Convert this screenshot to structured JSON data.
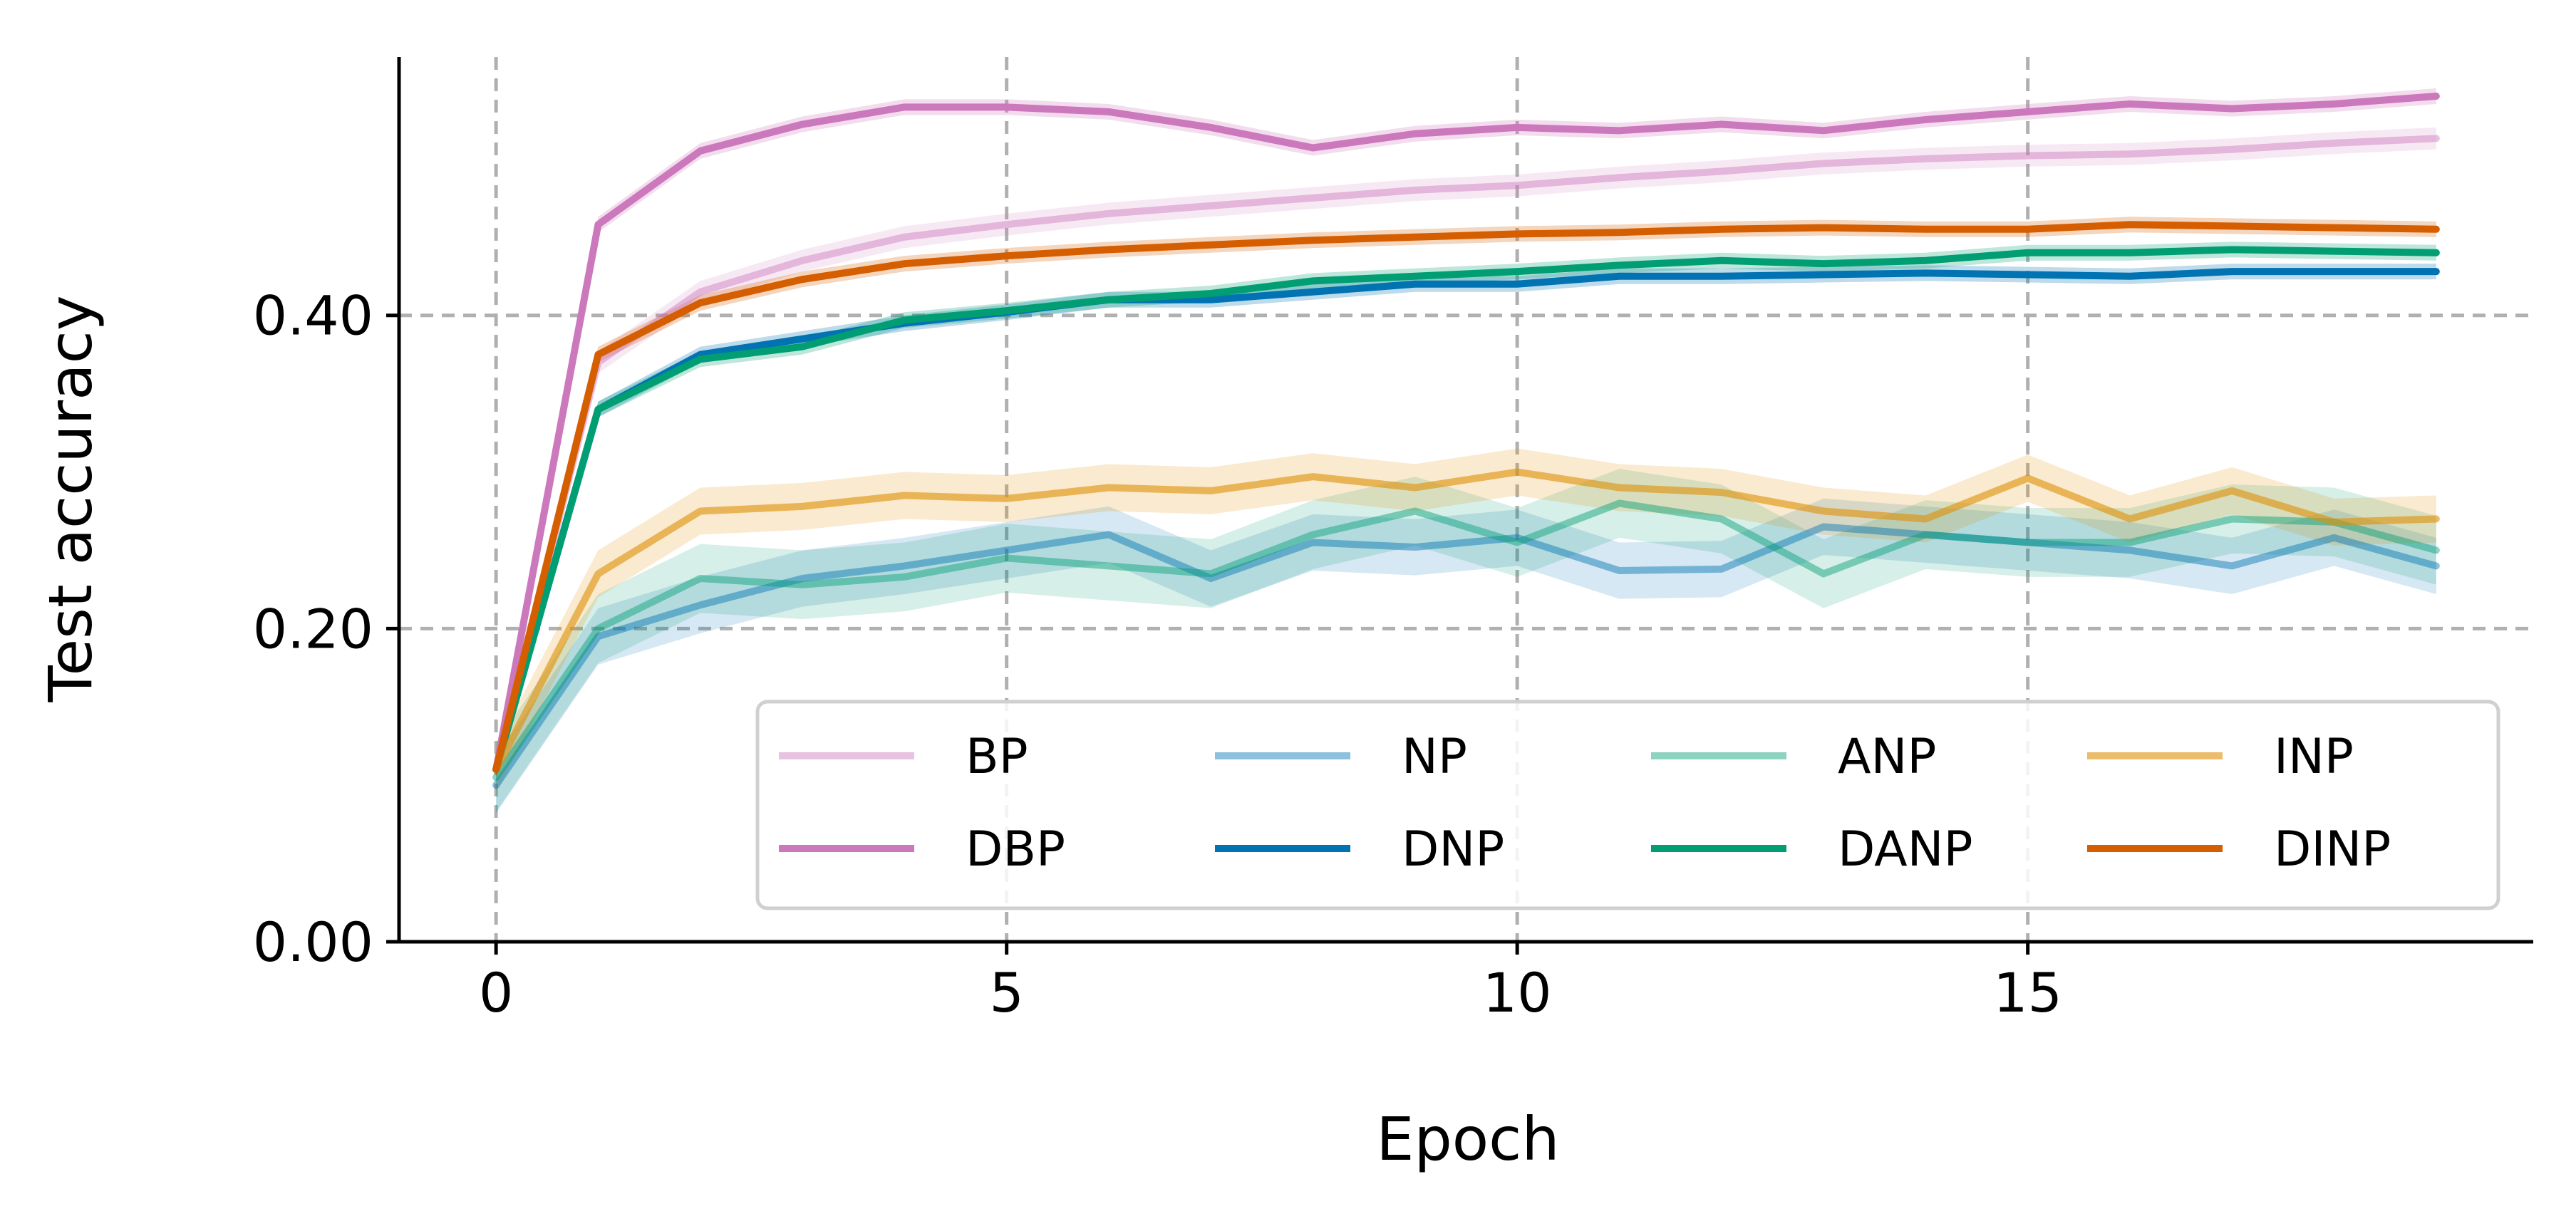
{
  "chart_data": {
    "type": "line",
    "xlabel": "Epoch",
    "ylabel": "Test accuracy",
    "xlim": [
      -0.95,
      19.95
    ],
    "ylim": [
      0,
      0.565
    ],
    "xticks": [
      0,
      5,
      10,
      15
    ],
    "xtick_labels": [
      "0",
      "5",
      "10",
      "15"
    ],
    "yticks": [
      0,
      0.2,
      0.4
    ],
    "ytick_labels": [
      "0.00",
      "0.20",
      "0.40"
    ],
    "grid": true,
    "legend_position": "lower-right",
    "legend_columns": 4,
    "x": [
      0,
      1,
      2,
      3,
      4,
      5,
      6,
      7,
      8,
      9,
      10,
      11,
      12,
      13,
      14,
      15,
      16,
      17,
      18,
      19
    ],
    "series": [
      {
        "name": "BP",
        "color": "#cc78bc",
        "alpha": 0.45,
        "values": [
          0.11,
          0.37,
          0.415,
          0.435,
          0.45,
          0.458,
          0.465,
          0.47,
          0.475,
          0.48,
          0.483,
          0.488,
          0.492,
          0.497,
          0.5,
          0.502,
          0.503,
          0.506,
          0.51,
          0.513
        ],
        "band": 0.007
      },
      {
        "name": "DBP",
        "color": "#cc78bc",
        "alpha": 1,
        "values": [
          0.11,
          0.458,
          0.505,
          0.522,
          0.533,
          0.533,
          0.53,
          0.52,
          0.507,
          0.516,
          0.52,
          0.518,
          0.522,
          0.518,
          0.525,
          0.53,
          0.535,
          0.532,
          0.535,
          0.54
        ],
        "band": 0.005
      },
      {
        "name": "NP",
        "color": "#0173b2",
        "alpha": 0.45,
        "values": [
          0.1,
          0.195,
          0.215,
          0.232,
          0.24,
          0.25,
          0.26,
          0.232,
          0.255,
          0.252,
          0.258,
          0.237,
          0.238,
          0.265,
          0.26,
          0.255,
          0.25,
          0.24,
          0.258,
          0.24
        ],
        "band": 0.018
      },
      {
        "name": "DNP",
        "color": "#0173b2",
        "alpha": 1,
        "values": [
          0.11,
          0.34,
          0.375,
          0.385,
          0.395,
          0.402,
          0.41,
          0.41,
          0.415,
          0.42,
          0.42,
          0.425,
          0.425,
          0.426,
          0.427,
          0.426,
          0.425,
          0.428,
          0.428,
          0.428
        ],
        "band": 0.005
      },
      {
        "name": "ANP",
        "color": "#029e73",
        "alpha": 0.45,
        "values": [
          0.105,
          0.2,
          0.232,
          0.228,
          0.233,
          0.245,
          0.24,
          0.235,
          0.26,
          0.275,
          0.255,
          0.28,
          0.27,
          0.235,
          0.26,
          0.255,
          0.255,
          0.27,
          0.268,
          0.25
        ],
        "band": 0.022
      },
      {
        "name": "DANP",
        "color": "#029e73",
        "alpha": 1,
        "values": [
          0.11,
          0.34,
          0.372,
          0.38,
          0.397,
          0.403,
          0.41,
          0.414,
          0.422,
          0.425,
          0.428,
          0.432,
          0.435,
          0.433,
          0.435,
          0.44,
          0.44,
          0.442,
          0.441,
          0.44
        ],
        "band": 0.005
      },
      {
        "name": "INP",
        "color": "#de8f05",
        "alpha": 0.6,
        "values": [
          0.11,
          0.235,
          0.275,
          0.278,
          0.285,
          0.283,
          0.29,
          0.288,
          0.297,
          0.29,
          0.3,
          0.29,
          0.287,
          0.275,
          0.27,
          0.296,
          0.27,
          0.288,
          0.268,
          0.27
        ],
        "band": 0.015
      },
      {
        "name": "DINP",
        "color": "#d55e00",
        "alpha": 1,
        "values": [
          0.11,
          0.375,
          0.408,
          0.423,
          0.433,
          0.438,
          0.442,
          0.445,
          0.448,
          0.45,
          0.452,
          0.453,
          0.455,
          0.456,
          0.455,
          0.455,
          0.458,
          0.457,
          0.456,
          0.455
        ],
        "band": 0.005
      }
    ]
  }
}
